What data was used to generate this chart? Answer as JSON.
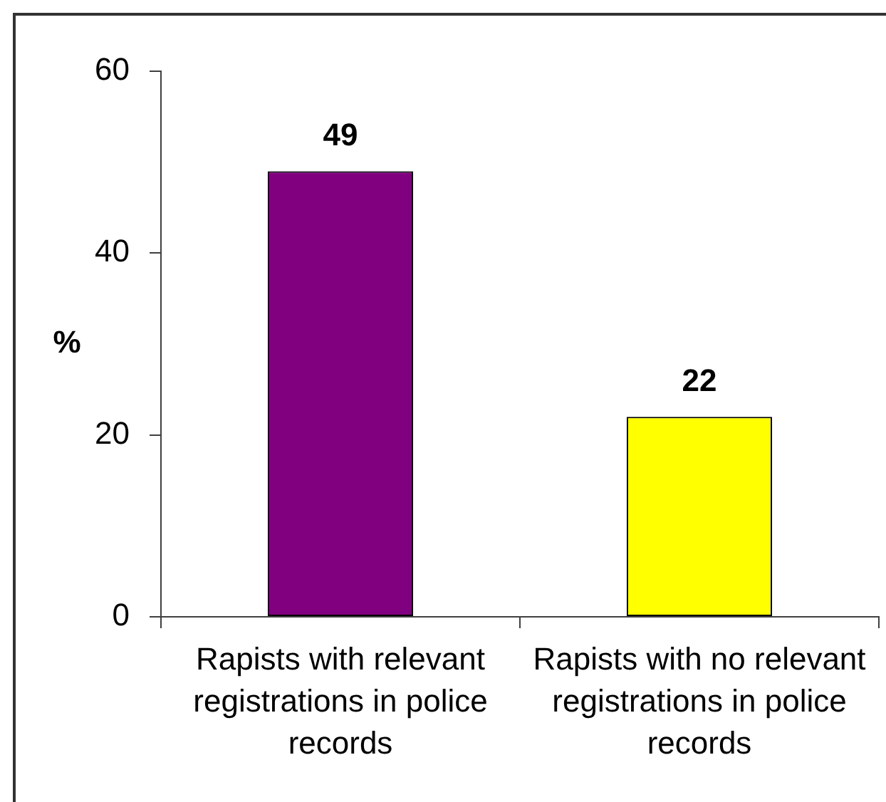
{
  "chart_data": {
    "type": "bar",
    "ylabel": "%",
    "categories": [
      "Rapists with relevant registrations in police records",
      "Rapists with no relevant registrations in police records"
    ],
    "values": [
      49,
      22
    ],
    "colors": [
      "#800080",
      "#ffff00"
    ],
    "ylim": [
      0,
      60
    ],
    "yticks": [
      0,
      20,
      40,
      60
    ],
    "data_labels": true
  }
}
